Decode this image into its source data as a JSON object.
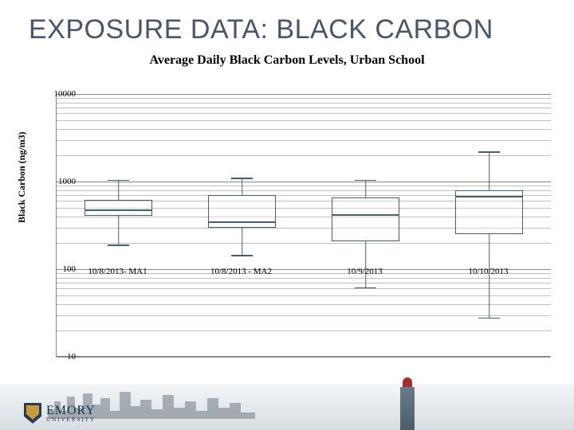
{
  "slide": {
    "title": "EXPOSURE DATA: BLACK CARBON"
  },
  "chart": {
    "type": "boxplot",
    "title": "Average Daily Black Carbon Levels, Urban School",
    "ylabel": "Black Carbon (ng/m3)",
    "yscale": "log",
    "ylim": [
      10,
      10000
    ],
    "yticks": [
      10,
      100,
      1000,
      10000
    ],
    "ytick_labels": [
      "10",
      "100",
      "1000",
      "10000"
    ],
    "background_color": "#ffffff",
    "grid_color": "#bfbfbf",
    "box_border_color": "#4a5d6b",
    "box_border_width": 1.5,
    "categories": [
      "10/8/2013- MA1",
      "10/8/2013 - MA2",
      "10/9/2013",
      "10/10/2013"
    ],
    "series": [
      {
        "min": 190,
        "q1": 410,
        "median": 480,
        "q3": 620,
        "max": 1050
      },
      {
        "min": 145,
        "q1": 300,
        "median": 350,
        "q3": 700,
        "max": 1100
      },
      {
        "min": 62,
        "q1": 210,
        "median": 420,
        "q3": 660,
        "max": 1050
      },
      {
        "min": 28,
        "q1": 250,
        "median": 680,
        "q3": 800,
        "max": 2200
      }
    ],
    "box_width_ratio": 0.55,
    "cap_width_ratio": 0.18
  },
  "branding": {
    "university": "EMORY",
    "subline": "UNIVERSITY"
  }
}
